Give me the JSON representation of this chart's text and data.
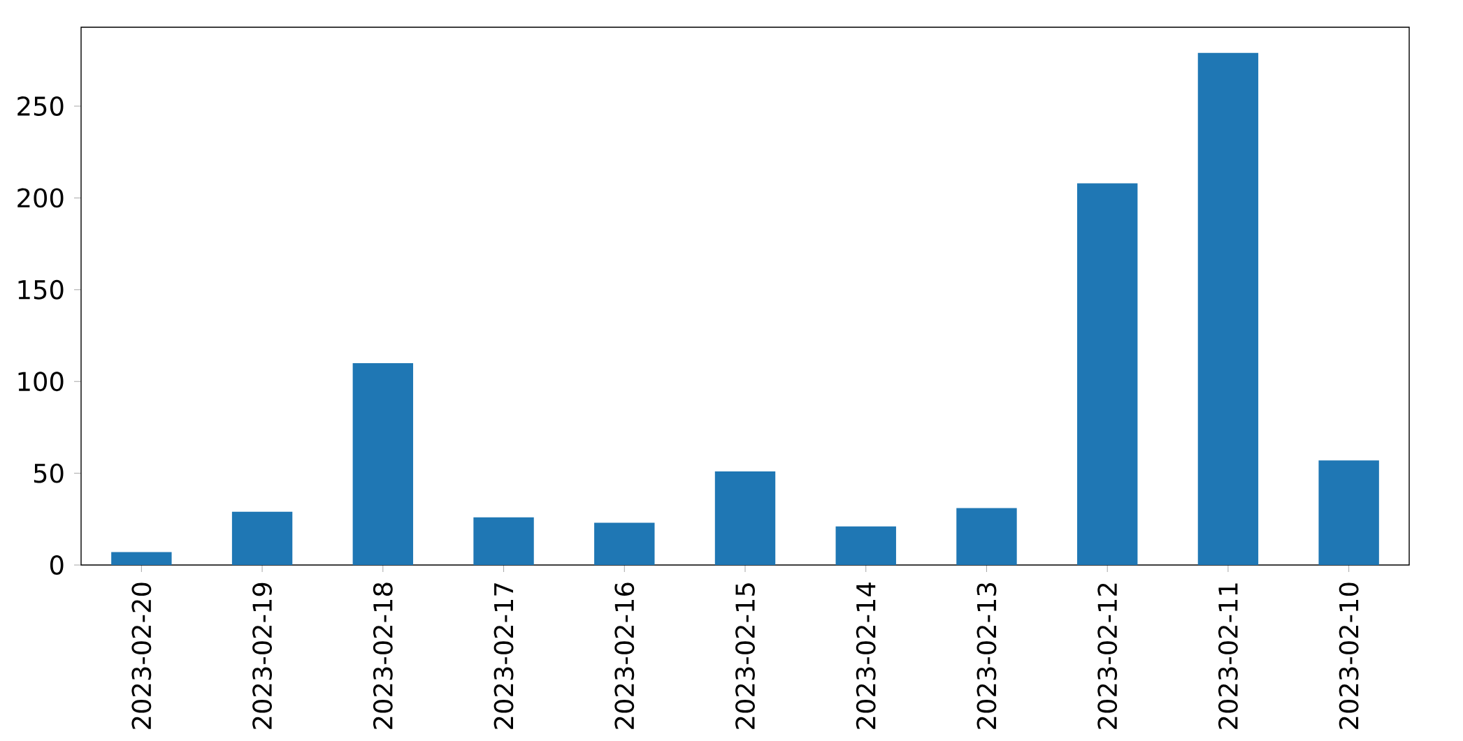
{
  "chart_data": {
    "type": "bar",
    "categories": [
      "2023-02-20",
      "2023-02-19",
      "2023-02-18",
      "2023-02-17",
      "2023-02-16",
      "2023-02-15",
      "2023-02-14",
      "2023-02-13",
      "2023-02-12",
      "2023-02-11",
      "2023-02-10"
    ],
    "values": [
      7,
      29,
      110,
      26,
      23,
      51,
      21,
      31,
      208,
      279,
      57
    ],
    "color": "#1f77b4",
    "ylim": [
      0,
      293
    ],
    "yticks": [
      0,
      50,
      100,
      150,
      200,
      250
    ],
    "grid": false
  }
}
